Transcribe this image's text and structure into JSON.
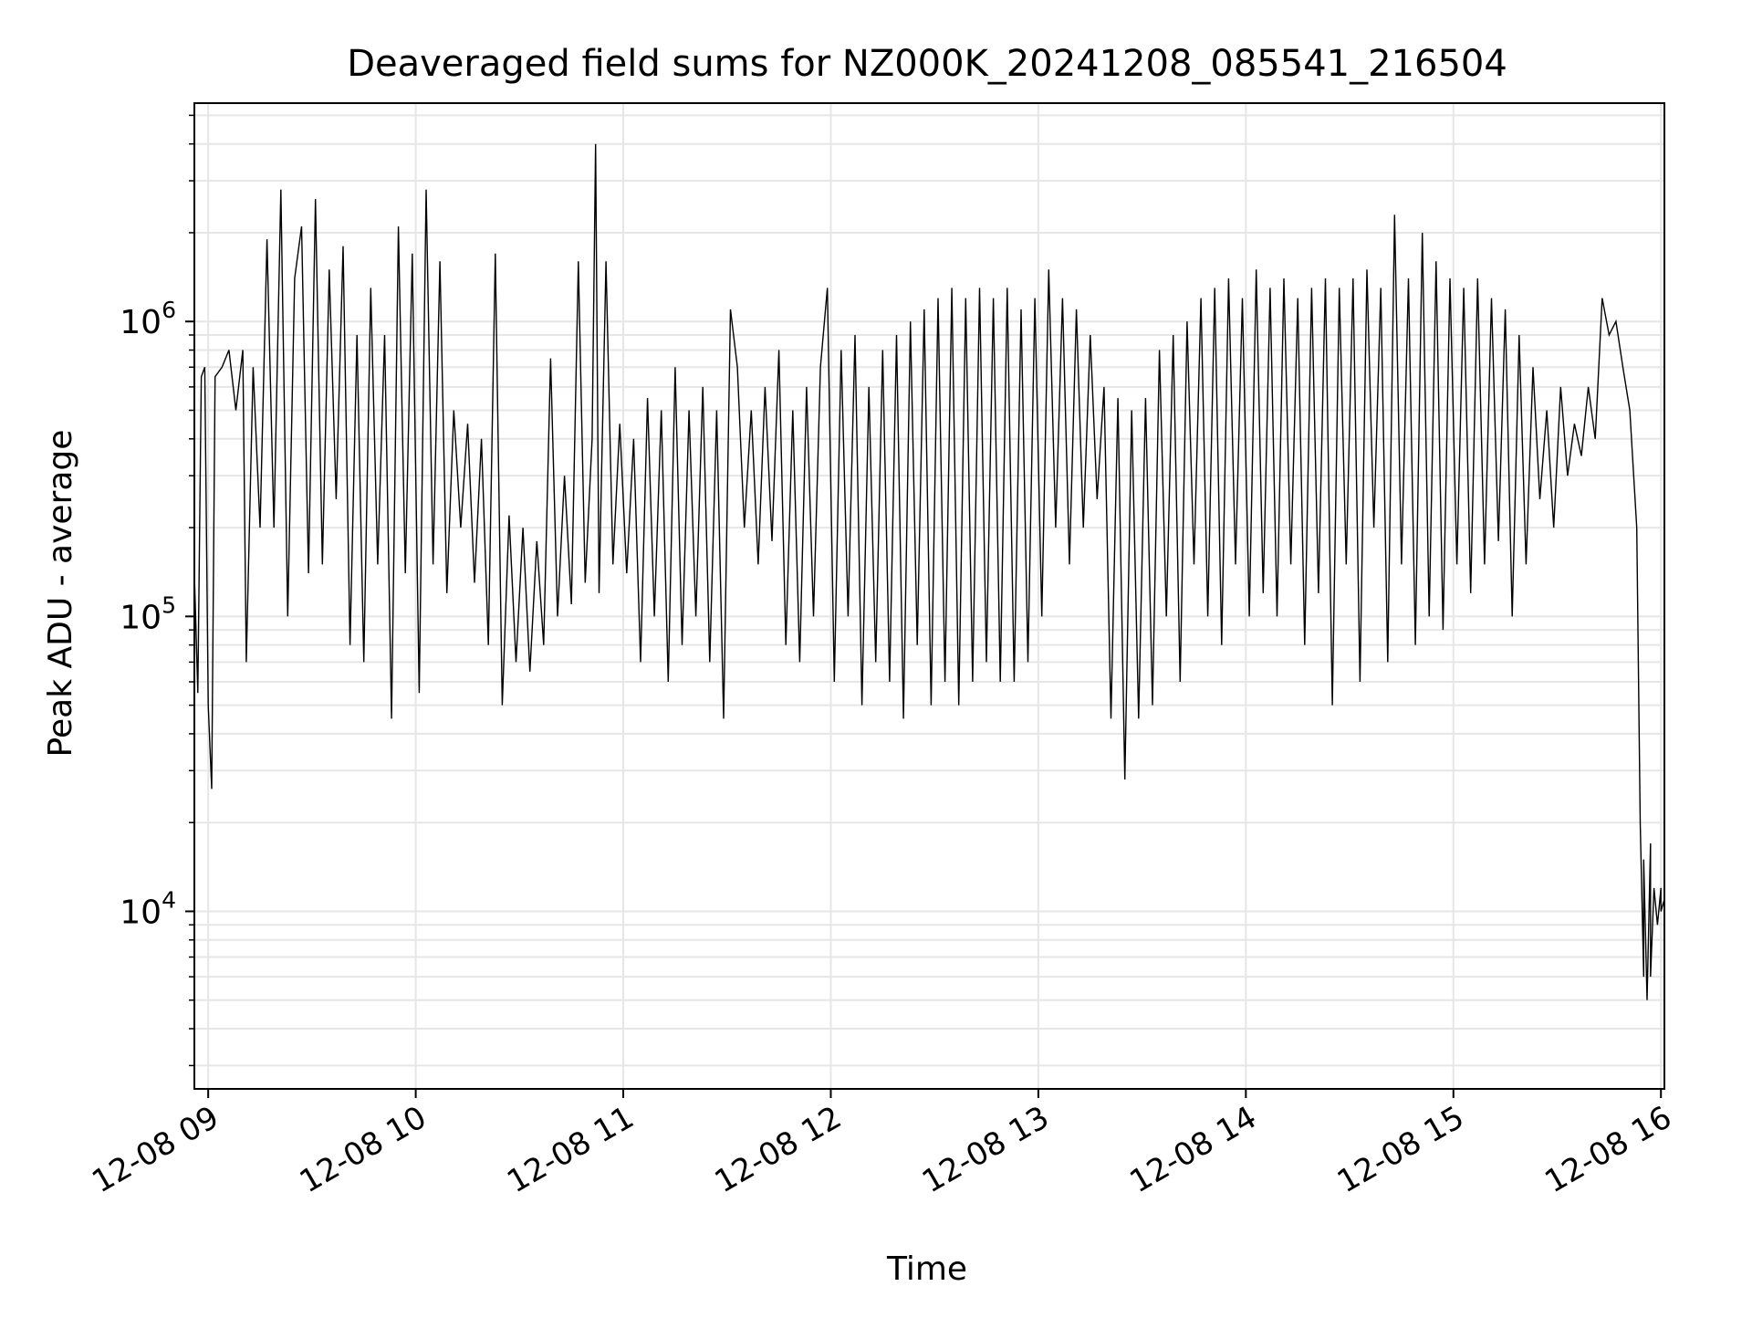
{
  "chart_data": {
    "type": "line",
    "title": "Deaveraged field sums for NZ000K_20241208_085541_216504",
    "xlabel": "Time",
    "ylabel": "Peak ADU - average",
    "yscale": "log",
    "grid": true,
    "legend": "none",
    "line_color": "#000000",
    "grid_color": "#e6e6e6",
    "xlim": [
      "2024-12-08 08:56",
      "2024-12-08 16:01"
    ],
    "ylim": [
      2500,
      5500000
    ],
    "x_ticks": [
      "2024-12-08 09:00",
      "2024-12-08 10:00",
      "2024-12-08 11:00",
      "2024-12-08 12:00",
      "2024-12-08 13:00",
      "2024-12-08 14:00",
      "2024-12-08 15:00",
      "2024-12-08 16:00"
    ],
    "x_tick_labels": [
      "12-08 09",
      "12-08 10",
      "12-08 11",
      "12-08 12",
      "12-08 13",
      "12-08 14",
      "12-08 15",
      "12-08 16"
    ],
    "y_ticks": [
      10000,
      100000,
      1000000
    ],
    "y_tick_labels": [
      {
        "base": "10",
        "exp": "4"
      },
      {
        "base": "10",
        "exp": "5"
      },
      {
        "base": "10",
        "exp": "6"
      }
    ],
    "series": [
      {
        "points": [
          [
            "2024-12-08 08:56",
            140000
          ],
          [
            "2024-12-08 08:57",
            55000
          ],
          [
            "2024-12-08 08:58",
            650000
          ],
          [
            "2024-12-08 08:59",
            700000
          ],
          [
            "2024-12-08 09:00",
            50000
          ],
          [
            "2024-12-08 09:01",
            26000
          ],
          [
            "2024-12-08 09:02",
            650000
          ],
          [
            "2024-12-08 09:04",
            700000
          ],
          [
            "2024-12-08 09:06",
            800000
          ],
          [
            "2024-12-08 09:08",
            500000
          ],
          [
            "2024-12-08 09:10",
            800000
          ],
          [
            "2024-12-08 09:11",
            70000
          ],
          [
            "2024-12-08 09:13",
            700000
          ],
          [
            "2024-12-08 09:15",
            200000
          ],
          [
            "2024-12-08 09:17",
            1900000
          ],
          [
            "2024-12-08 09:19",
            200000
          ],
          [
            "2024-12-08 09:21",
            2800000
          ],
          [
            "2024-12-08 09:23",
            100000
          ],
          [
            "2024-12-08 09:25",
            1400000
          ],
          [
            "2024-12-08 09:27",
            2100000
          ],
          [
            "2024-12-08 09:29",
            140000
          ],
          [
            "2024-12-08 09:31",
            2600000
          ],
          [
            "2024-12-08 09:33",
            150000
          ],
          [
            "2024-12-08 09:35",
            1500000
          ],
          [
            "2024-12-08 09:37",
            250000
          ],
          [
            "2024-12-08 09:39",
            1800000
          ],
          [
            "2024-12-08 09:41",
            80000
          ],
          [
            "2024-12-08 09:43",
            900000
          ],
          [
            "2024-12-08 09:45",
            70000
          ],
          [
            "2024-12-08 09:47",
            1300000
          ],
          [
            "2024-12-08 09:49",
            150000
          ],
          [
            "2024-12-08 09:51",
            900000
          ],
          [
            "2024-12-08 09:53",
            45000
          ],
          [
            "2024-12-08 09:55",
            2100000
          ],
          [
            "2024-12-08 09:57",
            140000
          ],
          [
            "2024-12-08 09:59",
            1700000
          ],
          [
            "2024-12-08 10:01",
            55000
          ],
          [
            "2024-12-08 10:03",
            2800000
          ],
          [
            "2024-12-08 10:05",
            150000
          ],
          [
            "2024-12-08 10:07",
            1600000
          ],
          [
            "2024-12-08 10:09",
            120000
          ],
          [
            "2024-12-08 10:11",
            500000
          ],
          [
            "2024-12-08 10:13",
            200000
          ],
          [
            "2024-12-08 10:15",
            450000
          ],
          [
            "2024-12-08 10:17",
            130000
          ],
          [
            "2024-12-08 10:19",
            400000
          ],
          [
            "2024-12-08 10:21",
            80000
          ],
          [
            "2024-12-08 10:23",
            1700000
          ],
          [
            "2024-12-08 10:25",
            50000
          ],
          [
            "2024-12-08 10:27",
            220000
          ],
          [
            "2024-12-08 10:29",
            70000
          ],
          [
            "2024-12-08 10:31",
            200000
          ],
          [
            "2024-12-08 10:33",
            65000
          ],
          [
            "2024-12-08 10:35",
            180000
          ],
          [
            "2024-12-08 10:37",
            80000
          ],
          [
            "2024-12-08 10:39",
            750000
          ],
          [
            "2024-12-08 10:41",
            100000
          ],
          [
            "2024-12-08 10:43",
            300000
          ],
          [
            "2024-12-08 10:45",
            110000
          ],
          [
            "2024-12-08 10:47",
            1600000
          ],
          [
            "2024-12-08 10:49",
            130000
          ],
          [
            "2024-12-08 10:51",
            400000
          ],
          [
            "2024-12-08 10:52",
            4000000
          ],
          [
            "2024-12-08 10:53",
            120000
          ],
          [
            "2024-12-08 10:55",
            1600000
          ],
          [
            "2024-12-08 10:57",
            150000
          ],
          [
            "2024-12-08 10:59",
            450000
          ],
          [
            "2024-12-08 11:01",
            140000
          ],
          [
            "2024-12-08 11:03",
            400000
          ],
          [
            "2024-12-08 11:05",
            70000
          ],
          [
            "2024-12-08 11:07",
            550000
          ],
          [
            "2024-12-08 11:09",
            100000
          ],
          [
            "2024-12-08 11:11",
            500000
          ],
          [
            "2024-12-08 11:13",
            60000
          ],
          [
            "2024-12-08 11:15",
            700000
          ],
          [
            "2024-12-08 11:17",
            80000
          ],
          [
            "2024-12-08 11:19",
            500000
          ],
          [
            "2024-12-08 11:21",
            100000
          ],
          [
            "2024-12-08 11:23",
            600000
          ],
          [
            "2024-12-08 11:25",
            70000
          ],
          [
            "2024-12-08 11:27",
            500000
          ],
          [
            "2024-12-08 11:29",
            45000
          ],
          [
            "2024-12-08 11:31",
            1100000
          ],
          [
            "2024-12-08 11:33",
            700000
          ],
          [
            "2024-12-08 11:35",
            200000
          ],
          [
            "2024-12-08 11:37",
            500000
          ],
          [
            "2024-12-08 11:39",
            150000
          ],
          [
            "2024-12-08 11:41",
            600000
          ],
          [
            "2024-12-08 11:43",
            180000
          ],
          [
            "2024-12-08 11:45",
            800000
          ],
          [
            "2024-12-08 11:47",
            80000
          ],
          [
            "2024-12-08 11:49",
            500000
          ],
          [
            "2024-12-08 11:51",
            70000
          ],
          [
            "2024-12-08 11:53",
            600000
          ],
          [
            "2024-12-08 11:55",
            100000
          ],
          [
            "2024-12-08 11:57",
            700000
          ],
          [
            "2024-12-08 11:59",
            1300000
          ],
          [
            "2024-12-08 12:01",
            60000
          ],
          [
            "2024-12-08 12:03",
            800000
          ],
          [
            "2024-12-08 12:05",
            100000
          ],
          [
            "2024-12-08 12:07",
            900000
          ],
          [
            "2024-12-08 12:09",
            50000
          ],
          [
            "2024-12-08 12:11",
            600000
          ],
          [
            "2024-12-08 12:13",
            70000
          ],
          [
            "2024-12-08 12:15",
            800000
          ],
          [
            "2024-12-08 12:17",
            60000
          ],
          [
            "2024-12-08 12:19",
            900000
          ],
          [
            "2024-12-08 12:21",
            45000
          ],
          [
            "2024-12-08 12:23",
            1000000
          ],
          [
            "2024-12-08 12:25",
            80000
          ],
          [
            "2024-12-08 12:27",
            1100000
          ],
          [
            "2024-12-08 12:29",
            50000
          ],
          [
            "2024-12-08 12:31",
            1200000
          ],
          [
            "2024-12-08 12:33",
            60000
          ],
          [
            "2024-12-08 12:35",
            1300000
          ],
          [
            "2024-12-08 12:37",
            50000
          ],
          [
            "2024-12-08 12:39",
            1200000
          ],
          [
            "2024-12-08 12:41",
            60000
          ],
          [
            "2024-12-08 12:43",
            1300000
          ],
          [
            "2024-12-08 12:45",
            70000
          ],
          [
            "2024-12-08 12:47",
            1200000
          ],
          [
            "2024-12-08 12:49",
            60000
          ],
          [
            "2024-12-08 12:51",
            1300000
          ],
          [
            "2024-12-08 12:53",
            60000
          ],
          [
            "2024-12-08 12:55",
            1100000
          ],
          [
            "2024-12-08 12:57",
            70000
          ],
          [
            "2024-12-08 12:59",
            1200000
          ],
          [
            "2024-12-08 13:01",
            100000
          ],
          [
            "2024-12-08 13:03",
            1500000
          ],
          [
            "2024-12-08 13:05",
            200000
          ],
          [
            "2024-12-08 13:07",
            1200000
          ],
          [
            "2024-12-08 13:09",
            150000
          ],
          [
            "2024-12-08 13:11",
            1100000
          ],
          [
            "2024-12-08 13:13",
            200000
          ],
          [
            "2024-12-08 13:15",
            900000
          ],
          [
            "2024-12-08 13:17",
            250000
          ],
          [
            "2024-12-08 13:19",
            600000
          ],
          [
            "2024-12-08 13:21",
            45000
          ],
          [
            "2024-12-08 13:23",
            550000
          ],
          [
            "2024-12-08 13:25",
            28000
          ],
          [
            "2024-12-08 13:27",
            500000
          ],
          [
            "2024-12-08 13:29",
            45000
          ],
          [
            "2024-12-08 13:31",
            550000
          ],
          [
            "2024-12-08 13:33",
            50000
          ],
          [
            "2024-12-08 13:35",
            800000
          ],
          [
            "2024-12-08 13:37",
            100000
          ],
          [
            "2024-12-08 13:39",
            900000
          ],
          [
            "2024-12-08 13:41",
            60000
          ],
          [
            "2024-12-08 13:43",
            1000000
          ],
          [
            "2024-12-08 13:45",
            150000
          ],
          [
            "2024-12-08 13:47",
            1200000
          ],
          [
            "2024-12-08 13:49",
            100000
          ],
          [
            "2024-12-08 13:51",
            1300000
          ],
          [
            "2024-12-08 13:53",
            80000
          ],
          [
            "2024-12-08 13:55",
            1400000
          ],
          [
            "2024-12-08 13:57",
            150000
          ],
          [
            "2024-12-08 13:59",
            1200000
          ],
          [
            "2024-12-08 14:01",
            100000
          ],
          [
            "2024-12-08 14:03",
            1500000
          ],
          [
            "2024-12-08 14:05",
            120000
          ],
          [
            "2024-12-08 14:07",
            1300000
          ],
          [
            "2024-12-08 14:09",
            100000
          ],
          [
            "2024-12-08 14:11",
            1400000
          ],
          [
            "2024-12-08 14:13",
            150000
          ],
          [
            "2024-12-08 14:15",
            1200000
          ],
          [
            "2024-12-08 14:17",
            80000
          ],
          [
            "2024-12-08 14:19",
            1300000
          ],
          [
            "2024-12-08 14:21",
            120000
          ],
          [
            "2024-12-08 14:23",
            1400000
          ],
          [
            "2024-12-08 14:25",
            50000
          ],
          [
            "2024-12-08 14:27",
            1300000
          ],
          [
            "2024-12-08 14:29",
            150000
          ],
          [
            "2024-12-08 14:31",
            1400000
          ],
          [
            "2024-12-08 14:33",
            60000
          ],
          [
            "2024-12-08 14:35",
            1500000
          ],
          [
            "2024-12-08 14:37",
            200000
          ],
          [
            "2024-12-08 14:39",
            1300000
          ],
          [
            "2024-12-08 14:41",
            70000
          ],
          [
            "2024-12-08 14:43",
            2300000
          ],
          [
            "2024-12-08 14:45",
            150000
          ],
          [
            "2024-12-08 14:47",
            1400000
          ],
          [
            "2024-12-08 14:49",
            80000
          ],
          [
            "2024-12-08 14:51",
            2000000
          ],
          [
            "2024-12-08 14:53",
            100000
          ],
          [
            "2024-12-08 14:55",
            1600000
          ],
          [
            "2024-12-08 14:57",
            90000
          ],
          [
            "2024-12-08 14:59",
            1400000
          ],
          [
            "2024-12-08 15:01",
            150000
          ],
          [
            "2024-12-08 15:03",
            1300000
          ],
          [
            "2024-12-08 15:05",
            120000
          ],
          [
            "2024-12-08 15:07",
            1400000
          ],
          [
            "2024-12-08 15:09",
            150000
          ],
          [
            "2024-12-08 15:11",
            1200000
          ],
          [
            "2024-12-08 15:13",
            180000
          ],
          [
            "2024-12-08 15:15",
            1100000
          ],
          [
            "2024-12-08 15:17",
            100000
          ],
          [
            "2024-12-08 15:19",
            900000
          ],
          [
            "2024-12-08 15:21",
            150000
          ],
          [
            "2024-12-08 15:23",
            700000
          ],
          [
            "2024-12-08 15:25",
            250000
          ],
          [
            "2024-12-08 15:27",
            500000
          ],
          [
            "2024-12-08 15:29",
            200000
          ],
          [
            "2024-12-08 15:31",
            600000
          ],
          [
            "2024-12-08 15:33",
            300000
          ],
          [
            "2024-12-08 15:35",
            450000
          ],
          [
            "2024-12-08 15:37",
            350000
          ],
          [
            "2024-12-08 15:39",
            600000
          ],
          [
            "2024-12-08 15:41",
            400000
          ],
          [
            "2024-12-08 15:43",
            1200000
          ],
          [
            "2024-12-08 15:45",
            900000
          ],
          [
            "2024-12-08 15:47",
            1000000
          ],
          [
            "2024-12-08 15:49",
            700000
          ],
          [
            "2024-12-08 15:51",
            500000
          ],
          [
            "2024-12-08 15:53",
            200000
          ],
          [
            "2024-12-08 15:54",
            20000
          ],
          [
            "2024-12-08 15:55",
            6000
          ],
          [
            "2024-12-08 15:55",
            15000
          ],
          [
            "2024-12-08 15:56",
            5000
          ],
          [
            "2024-12-08 15:57",
            17000
          ],
          [
            "2024-12-08 15:57",
            6000
          ],
          [
            "2024-12-08 15:58",
            12000
          ],
          [
            "2024-12-08 15:59",
            9000
          ],
          [
            "2024-12-08 16:00",
            12000
          ],
          [
            "2024-12-08 16:00",
            10000
          ],
          [
            "2024-12-08 16:01",
            11000
          ]
        ]
      }
    ]
  }
}
